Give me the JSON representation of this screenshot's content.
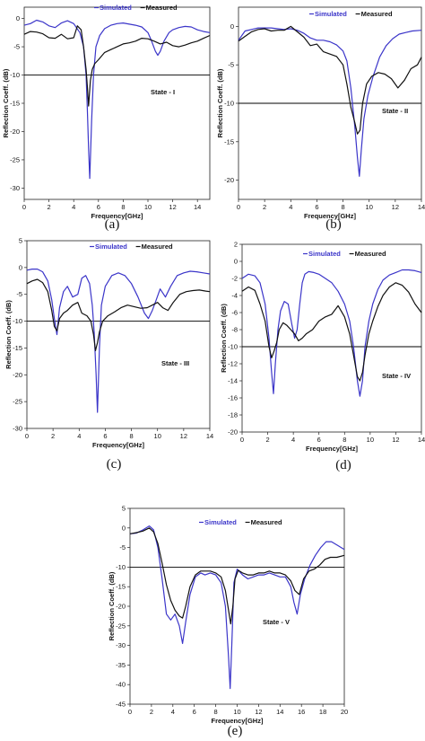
{
  "colors": {
    "simulated": "#3b35c9",
    "measured": "#111111",
    "threshold": "#000000"
  },
  "chart_data": [
    {
      "type": "line",
      "caption": "(a)",
      "xlabel": "Frequency[GHz]",
      "ylabel": "Reflection Coeff. (dB)",
      "annotation": "State - I",
      "legend": [
        "Simulated",
        "Measured"
      ],
      "xlim": [
        0,
        15
      ],
      "ylim": [
        -32,
        2
      ],
      "xticks": [
        0,
        2,
        4,
        6,
        8,
        10,
        12,
        14
      ],
      "yticks": [
        0,
        -5,
        -10,
        -15,
        -20,
        -25,
        -30
      ],
      "threshold": -10,
      "series": [
        {
          "name": "Simulated",
          "x": [
            0,
            0.5,
            1,
            1.5,
            2,
            2.5,
            3,
            3.5,
            4,
            4.5,
            4.8,
            5,
            5.1,
            5.2,
            5.3,
            5.45,
            5.6,
            5.8,
            6.1,
            6.5,
            7,
            7.5,
            8,
            8.5,
            9,
            9.5,
            10,
            10.3,
            10.6,
            10.8,
            11,
            11.3,
            11.7,
            12,
            12.5,
            13,
            13.5,
            14,
            14.5,
            15
          ],
          "y": [
            -1.2,
            -0.9,
            -0.3,
            -0.6,
            -1.3,
            -1.6,
            -0.8,
            -0.4,
            -0.9,
            -2.5,
            -5,
            -10,
            -16,
            -23,
            -28.3,
            -18,
            -10,
            -5,
            -3,
            -1.8,
            -1.2,
            -0.9,
            -0.8,
            -1,
            -1.2,
            -1.5,
            -2.5,
            -4,
            -5.8,
            -6.5,
            -5.8,
            -4,
            -2.5,
            -2,
            -1.6,
            -1.4,
            -1.5,
            -2,
            -2.3,
            -2.5
          ]
        },
        {
          "name": "Measured",
          "x": [
            0,
            0.5,
            1,
            1.5,
            2,
            2.5,
            3,
            3.5,
            4,
            4.3,
            4.6,
            4.8,
            5,
            5.1,
            5.2,
            5.35,
            5.5,
            5.7,
            6,
            6.5,
            7,
            7.5,
            8,
            8.5,
            9,
            9.5,
            10,
            10.5,
            11,
            11.5,
            12,
            12.5,
            13,
            13.5,
            14,
            14.5,
            15
          ],
          "y": [
            -2.8,
            -2.3,
            -2.4,
            -2.7,
            -3.4,
            -3.5,
            -2.8,
            -3.6,
            -3.4,
            -1.3,
            -2,
            -5,
            -9,
            -12,
            -15.5,
            -11,
            -9,
            -8,
            -7.3,
            -6,
            -5.5,
            -5,
            -4.5,
            -4.3,
            -4,
            -3.5,
            -3.6,
            -4,
            -4.5,
            -4.2,
            -4.8,
            -5,
            -4.7,
            -4.3,
            -4,
            -3.5,
            -3
          ]
        }
      ]
    },
    {
      "type": "line",
      "caption": "(b)",
      "xlabel": "Frequency[GHz]",
      "ylabel": "Reflection Coeff. (dB)",
      "annotation": "State - II",
      "legend": [
        "Simulated",
        "Measured"
      ],
      "xlim": [
        0,
        14
      ],
      "ylim": [
        -22.5,
        2.5
      ],
      "xticks": [
        0,
        2,
        4,
        6,
        8,
        10,
        12,
        14
      ],
      "yticks": [
        0,
        -5,
        -10,
        -15,
        -20
      ],
      "threshold": -10,
      "series": [
        {
          "name": "Simulated",
          "x": [
            0,
            0.5,
            1,
            1.5,
            2,
            2.5,
            3,
            3.5,
            4,
            4.5,
            5,
            5.5,
            6,
            6.5,
            7,
            7.5,
            8,
            8.3,
            8.6,
            8.9,
            9.1,
            9.25,
            9.4,
            9.6,
            9.9,
            10.3,
            10.8,
            11.3,
            11.8,
            12.3,
            12.8,
            13.3,
            14
          ],
          "y": [
            -1.8,
            -0.6,
            -0.4,
            -0.2,
            -0.2,
            -0.2,
            -0.3,
            -0.4,
            -0.3,
            -0.5,
            -0.9,
            -1.5,
            -1.8,
            -1.8,
            -2,
            -2.4,
            -3.2,
            -4.5,
            -8,
            -13,
            -17,
            -19.5,
            -16,
            -12,
            -9,
            -6.5,
            -4,
            -2.5,
            -1.6,
            -1,
            -0.8,
            -0.6,
            -0.5
          ]
        },
        {
          "name": "Measured",
          "x": [
            0,
            0.5,
            1,
            1.5,
            2,
            2.5,
            3,
            3.5,
            4,
            4.5,
            5,
            5.5,
            6,
            6.5,
            7,
            7.5,
            8,
            8.3,
            8.6,
            8.9,
            9.1,
            9.3,
            9.5,
            9.8,
            10.2,
            10.7,
            11.2,
            11.7,
            12.2,
            12.7,
            13.2,
            13.7,
            14
          ],
          "y": [
            -1.9,
            -1.3,
            -0.7,
            -0.4,
            -0.3,
            -0.6,
            -0.5,
            -0.5,
            0.0,
            -0.7,
            -1.4,
            -2.5,
            -2.3,
            -3.3,
            -3.6,
            -3.9,
            -5,
            -7.5,
            -10.5,
            -12.5,
            -14,
            -13.5,
            -10,
            -7.5,
            -6.5,
            -6,
            -6.2,
            -6.8,
            -8,
            -7,
            -5.5,
            -5,
            -4
          ]
        }
      ]
    },
    {
      "type": "line",
      "caption": "(c)",
      "xlabel": "Frequency[GHz]",
      "ylabel": "Reflection Coeff. (dB)",
      "annotation": "State - III",
      "legend": [
        "Simulated",
        "Measured"
      ],
      "xlim": [
        0,
        14
      ],
      "ylim": [
        -30,
        5
      ],
      "xticks": [
        0,
        2,
        4,
        6,
        8,
        10,
        12,
        14
      ],
      "yticks": [
        5,
        0,
        -5,
        -10,
        -15,
        -20,
        -25,
        -30
      ],
      "threshold": -10,
      "series": [
        {
          "name": "Simulated",
          "x": [
            0,
            0.4,
            0.8,
            1.2,
            1.6,
            1.9,
            2.1,
            2.3,
            2.5,
            2.8,
            3.1,
            3.5,
            3.9,
            4.2,
            4.5,
            4.8,
            5,
            5.15,
            5.3,
            5.4,
            5.55,
            5.7,
            6,
            6.5,
            7,
            7.5,
            8,
            8.5,
            9,
            9.3,
            9.6,
            9.9,
            10.2,
            10.6,
            11,
            11.5,
            12,
            12.5,
            13,
            13.5,
            14
          ],
          "y": [
            -0.5,
            -0.3,
            -0.3,
            -0.8,
            -2.5,
            -6,
            -9.5,
            -12.5,
            -7.5,
            -4.5,
            -3.5,
            -5.5,
            -5,
            -2,
            -1.5,
            -3,
            -7,
            -12,
            -20,
            -27,
            -15,
            -7,
            -3.5,
            -1.5,
            -1,
            -1.5,
            -3,
            -5.5,
            -8.5,
            -9.5,
            -8,
            -6,
            -4,
            -5.5,
            -3.5,
            -1.5,
            -1,
            -0.7,
            -0.8,
            -1,
            -1.2
          ]
        },
        {
          "name": "Measured",
          "x": [
            0,
            0.4,
            0.8,
            1.2,
            1.6,
            1.9,
            2.1,
            2.3,
            2.5,
            2.8,
            3.1,
            3.5,
            3.9,
            4.2,
            4.6,
            4.9,
            5.1,
            5.25,
            5.4,
            5.55,
            5.8,
            6.2,
            6.7,
            7.2,
            7.7,
            8.2,
            8.7,
            9.2,
            9.6,
            10,
            10.4,
            10.8,
            11.2,
            11.7,
            12.2,
            12.7,
            13.2,
            13.7,
            14
          ],
          "y": [
            -3,
            -2.5,
            -2.2,
            -2.8,
            -4.5,
            -8,
            -11,
            -11.8,
            -9.5,
            -8.5,
            -8,
            -7,
            -6.5,
            -8.5,
            -9,
            -10,
            -12.5,
            -15.5,
            -14,
            -12,
            -10,
            -9,
            -8.3,
            -7.5,
            -7,
            -7.3,
            -7.6,
            -7.5,
            -7,
            -6.5,
            -7.5,
            -8,
            -6.5,
            -5,
            -4.5,
            -4.3,
            -4.2,
            -4.4,
            -4.5
          ]
        }
      ]
    },
    {
      "type": "line",
      "caption": "(d)",
      "xlabel": "Frequency[GHz]",
      "ylabel": "Reflection Coeff. (dB)",
      "annotation": "State - IV",
      "legend": [
        "Simulated",
        "Measured"
      ],
      "xlim": [
        0,
        14
      ],
      "ylim": [
        -20,
        2
      ],
      "xticks": [
        0,
        2,
        4,
        6,
        8,
        10,
        12,
        14
      ],
      "yticks": [
        2,
        0,
        -2,
        -4,
        -6,
        -8,
        -10,
        -12,
        -14,
        -16,
        -18,
        -20
      ],
      "threshold": -10,
      "series": [
        {
          "name": "Simulated",
          "x": [
            0,
            0.5,
            1,
            1.4,
            1.8,
            2.1,
            2.3,
            2.45,
            2.6,
            2.8,
            3,
            3.3,
            3.6,
            3.9,
            4.1,
            4.3,
            4.5,
            4.7,
            4.9,
            5.2,
            5.6,
            6,
            6.5,
            7,
            7.5,
            8,
            8.4,
            8.7,
            9,
            9.2,
            9.4,
            9.6,
            9.9,
            10.2,
            10.6,
            11,
            11.5,
            12,
            12.5,
            13,
            13.5,
            14
          ],
          "y": [
            -2,
            -1.5,
            -1.7,
            -2.5,
            -5,
            -9,
            -13,
            -15.5,
            -12,
            -8,
            -5.8,
            -4.7,
            -5,
            -7.5,
            -9,
            -8,
            -5,
            -2.5,
            -1.5,
            -1.2,
            -1.3,
            -1.5,
            -2,
            -2.5,
            -3.5,
            -5,
            -7,
            -10,
            -14,
            -15.8,
            -14,
            -10,
            -7,
            -5,
            -3.3,
            -2.2,
            -1.6,
            -1.3,
            -1,
            -1,
            -1.1,
            -1.3
          ]
        },
        {
          "name": "Measured",
          "x": [
            0,
            0.5,
            1,
            1.4,
            1.8,
            2.1,
            2.3,
            2.5,
            2.7,
            2.9,
            3.2,
            3.5,
            3.8,
            4.1,
            4.4,
            4.7,
            5,
            5.5,
            6,
            6.5,
            7,
            7.5,
            8,
            8.4,
            8.7,
            9,
            9.2,
            9.4,
            9.6,
            9.9,
            10.2,
            10.6,
            11,
            11.5,
            12,
            12.5,
            13,
            13.5,
            14
          ],
          "y": [
            -3.5,
            -3,
            -3.4,
            -5,
            -7,
            -10,
            -11.3,
            -10.5,
            -9.5,
            -8,
            -7.2,
            -7.5,
            -8,
            -8.5,
            -9.3,
            -9,
            -8.5,
            -8,
            -7,
            -6.5,
            -6.2,
            -5.2,
            -6.5,
            -8.5,
            -11,
            -13.5,
            -14,
            -13,
            -11,
            -8.5,
            -7,
            -5.3,
            -4,
            -3,
            -2.5,
            -2.8,
            -3.6,
            -5,
            -6
          ]
        }
      ]
    },
    {
      "type": "line",
      "caption": "(e)",
      "xlabel": "Frequency[GHz]",
      "ylabel": "Reflection Coeff. (dB)",
      "annotation": "State - V",
      "legend": [
        "Simulated",
        "Measured"
      ],
      "xlim": [
        0,
        20
      ],
      "ylim": [
        -45,
        5
      ],
      "xticks": [
        0,
        2,
        4,
        6,
        8,
        10,
        12,
        14,
        16,
        18,
        20
      ],
      "yticks": [
        5,
        0,
        -5,
        -10,
        -15,
        -20,
        -25,
        -30,
        -35,
        -40,
        -45
      ],
      "threshold": -10,
      "series": [
        {
          "name": "Simulated",
          "x": [
            0,
            0.6,
            1.2,
            1.8,
            2.2,
            2.6,
            3,
            3.4,
            3.8,
            4.2,
            4.6,
            4.9,
            5.2,
            5.6,
            6.1,
            6.6,
            7,
            7.5,
            8,
            8.5,
            8.9,
            9.2,
            9.35,
            9.5,
            9.7,
            10,
            10.5,
            11,
            11.5,
            12,
            12.5,
            13,
            13.5,
            14,
            14.5,
            15,
            15.3,
            15.6,
            15.9,
            16.3,
            16.8,
            17.3,
            17.8,
            18.3,
            18.8,
            19.4,
            20
          ],
          "y": [
            -1.5,
            -1.3,
            -0.5,
            0.5,
            -0.5,
            -5,
            -13,
            -22,
            -23.5,
            -22,
            -25,
            -29.5,
            -24,
            -17,
            -12.5,
            -11.5,
            -12,
            -11.5,
            -12,
            -14,
            -20,
            -33,
            -41,
            -30,
            -14,
            -10.5,
            -12,
            -13,
            -12.5,
            -12,
            -12,
            -11.5,
            -12,
            -12.5,
            -12.5,
            -15,
            -19,
            -22,
            -17,
            -13,
            -9.5,
            -7,
            -5,
            -3.5,
            -3.5,
            -4.5,
            -5.5
          ]
        },
        {
          "name": "Measured",
          "x": [
            0,
            0.6,
            1.2,
            1.8,
            2.2,
            2.6,
            3,
            3.4,
            3.8,
            4.2,
            4.6,
            4.9,
            5.2,
            5.6,
            6.1,
            6.6,
            7,
            7.5,
            8,
            8.5,
            8.9,
            9.2,
            9.4,
            9.6,
            9.8,
            10.1,
            10.5,
            11,
            11.5,
            12,
            12.5,
            13,
            13.5,
            14,
            14.5,
            15,
            15.4,
            15.8,
            16.2,
            16.7,
            17.2,
            17.7,
            18.2,
            18.7,
            19.3,
            20
          ],
          "y": [
            -1.5,
            -1.2,
            -0.8,
            0.0,
            -1,
            -4,
            -9,
            -14.5,
            -18.5,
            -21,
            -22.5,
            -23,
            -20,
            -15,
            -12,
            -11,
            -11,
            -11,
            -11.5,
            -12.5,
            -16,
            -21,
            -24.5,
            -20,
            -13,
            -10.8,
            -11.5,
            -12,
            -12,
            -11.5,
            -11.5,
            -11,
            -11.5,
            -11.5,
            -12,
            -13.5,
            -16,
            -17,
            -13,
            -11,
            -10.5,
            -9.5,
            -8,
            -7.5,
            -7.5,
            -7
          ]
        }
      ]
    }
  ]
}
